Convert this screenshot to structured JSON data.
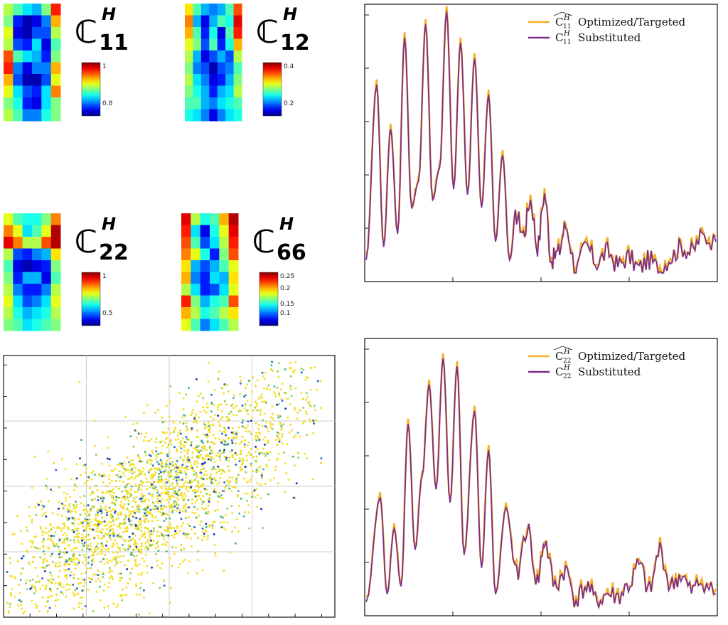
{
  "heatmaps": [
    {
      "id": "C11",
      "sym": "ℂ",
      "sup": "H",
      "sub": "11",
      "cbar_top": "1",
      "cbar_bottom": "0.8",
      "grid": [
        [
          0.55,
          0.45,
          0.35,
          0.3,
          0.5,
          0.85
        ],
        [
          0.5,
          0.15,
          0.05,
          0.1,
          0.25,
          0.7
        ],
        [
          0.6,
          0.1,
          0.05,
          0.2,
          0.2,
          0.55
        ],
        [
          0.55,
          0.2,
          0.15,
          0.35,
          0.1,
          0.45
        ],
        [
          0.8,
          0.45,
          0.35,
          0.3,
          0.15,
          0.5
        ],
        [
          0.85,
          0.25,
          0.1,
          0.25,
          0.25,
          0.7
        ],
        [
          0.7,
          0.2,
          0.05,
          0.05,
          0.2,
          0.6
        ],
        [
          0.6,
          0.35,
          0.2,
          0.15,
          0.35,
          0.75
        ],
        [
          0.5,
          0.4,
          0.15,
          0.1,
          0.35,
          0.5
        ],
        [
          0.55,
          0.45,
          0.25,
          0.25,
          0.4,
          0.5
        ]
      ]
    },
    {
      "id": "C12",
      "sym": "ℂ",
      "sup": "H",
      "sub": "12",
      "cbar_top": "0.4",
      "cbar_bottom": "0.2",
      "grid": [
        [
          0.65,
          0.45,
          0.3,
          0.25,
          0.3,
          0.45,
          0.8
        ],
        [
          0.75,
          0.3,
          0.1,
          0.3,
          0.45,
          0.4,
          0.9
        ],
        [
          0.7,
          0.45,
          0.15,
          0.4,
          0.1,
          0.45,
          0.85
        ],
        [
          0.6,
          0.5,
          0.2,
          0.45,
          0.15,
          0.4,
          0.7
        ],
        [
          0.55,
          0.3,
          0.1,
          0.2,
          0.3,
          0.2,
          0.55
        ],
        [
          0.5,
          0.25,
          0.2,
          0.05,
          0.2,
          0.25,
          0.45
        ],
        [
          0.55,
          0.35,
          0.25,
          0.1,
          0.15,
          0.3,
          0.5
        ],
        [
          0.5,
          0.4,
          0.3,
          0.15,
          0.3,
          0.35,
          0.55
        ],
        [
          0.45,
          0.45,
          0.3,
          0.25,
          0.35,
          0.4,
          0.45
        ],
        [
          0.4,
          0.35,
          0.25,
          0.1,
          0.25,
          0.35,
          0.4
        ]
      ]
    },
    {
      "id": "C22",
      "sym": "ℂ",
      "sup": "H",
      "sub": "22",
      "cbar_top": "1",
      "cbar_bottom": "0.5",
      "grid": [
        [
          0.6,
          0.45,
          0.4,
          0.4,
          0.5,
          0.75
        ],
        [
          0.75,
          0.6,
          0.35,
          0.45,
          0.6,
          0.95
        ],
        [
          0.9,
          0.75,
          0.55,
          0.55,
          0.8,
          0.95
        ],
        [
          0.55,
          0.2,
          0.15,
          0.25,
          0.3,
          0.65
        ],
        [
          0.45,
          0.1,
          0.05,
          0.1,
          0.15,
          0.5
        ],
        [
          0.5,
          0.15,
          0.3,
          0.3,
          0.1,
          0.45
        ],
        [
          0.55,
          0.25,
          0.15,
          0.15,
          0.25,
          0.55
        ],
        [
          0.6,
          0.35,
          0.2,
          0.25,
          0.35,
          0.6
        ],
        [
          0.55,
          0.4,
          0.3,
          0.35,
          0.4,
          0.55
        ],
        [
          0.5,
          0.45,
          0.35,
          0.4,
          0.45,
          0.5
        ]
      ]
    },
    {
      "id": "C66",
      "sym": "ℂ",
      "sup": "H",
      "sub": "66",
      "cbar_top": "0.25",
      "cbar_bottom": "0.1",
      "cbar_mid": [
        "0.2",
        "0.15"
      ],
      "grid": [
        [
          0.9,
          0.55,
          0.4,
          0.45,
          0.7,
          0.95
        ],
        [
          0.85,
          0.35,
          0.1,
          0.4,
          0.6,
          0.9
        ],
        [
          0.8,
          0.45,
          0.2,
          0.35,
          0.55,
          0.85
        ],
        [
          0.75,
          0.6,
          0.4,
          0.15,
          0.5,
          0.8
        ],
        [
          0.65,
          0.3,
          0.2,
          0.3,
          0.45,
          0.6
        ],
        [
          0.7,
          0.25,
          0.15,
          0.35,
          0.3,
          0.65
        ],
        [
          0.55,
          0.35,
          0.15,
          0.2,
          0.35,
          0.6
        ],
        [
          0.85,
          0.5,
          0.3,
          0.4,
          0.45,
          0.8
        ],
        [
          0.7,
          0.55,
          0.4,
          0.45,
          0.55,
          0.65
        ],
        [
          0.6,
          0.45,
          0.25,
          0.35,
          0.45,
          0.55
        ]
      ]
    }
  ],
  "chart_data": [
    {
      "type": "line",
      "legend_placement": "top-right",
      "series": [
        {
          "name": "Optimized/Targeted",
          "legend_sym": "C",
          "legend_sup": "H",
          "legend_sub": "11",
          "legend_hat": true,
          "color": "#f5b026"
        },
        {
          "name": "Substituted",
          "legend_sym": "C",
          "legend_sup": "H",
          "legend_sub": "11",
          "legend_hat": false,
          "color": "#7b2d8e"
        }
      ],
      "peaks": [
        [
          0.0,
          0.05
        ],
        [
          0.03,
          0.72
        ],
        [
          0.05,
          0.1
        ],
        [
          0.07,
          0.55
        ],
        [
          0.09,
          0.15
        ],
        [
          0.11,
          0.9
        ],
        [
          0.13,
          0.25
        ],
        [
          0.15,
          0.35
        ],
        [
          0.17,
          0.95
        ],
        [
          0.19,
          0.28
        ],
        [
          0.21,
          0.4
        ],
        [
          0.23,
          1.0
        ],
        [
          0.25,
          0.32
        ],
        [
          0.27,
          0.88
        ],
        [
          0.29,
          0.3
        ],
        [
          0.31,
          0.82
        ],
        [
          0.33,
          0.25
        ],
        [
          0.35,
          0.68
        ],
        [
          0.37,
          0.12
        ],
        [
          0.39,
          0.45
        ],
        [
          0.41,
          0.05
        ],
        [
          0.43,
          0.22
        ],
        [
          0.45,
          0.15
        ],
        [
          0.47,
          0.28
        ],
        [
          0.49,
          0.1
        ],
        [
          0.51,
          0.3
        ],
        [
          0.53,
          0.05
        ],
        [
          0.55,
          0.08
        ],
        [
          0.57,
          0.18
        ],
        [
          0.6,
          0.02
        ],
        [
          0.63,
          0.1
        ],
        [
          0.66,
          0.04
        ],
        [
          0.69,
          0.08
        ],
        [
          0.72,
          0.03
        ],
        [
          0.75,
          0.06
        ],
        [
          0.78,
          0.02
        ],
        [
          0.81,
          0.05
        ],
        [
          0.84,
          0.01
        ],
        [
          0.87,
          0.06
        ],
        [
          0.9,
          0.1
        ],
        [
          0.93,
          0.08
        ],
        [
          0.96,
          0.14
        ],
        [
          1.0,
          0.12
        ]
      ]
    },
    {
      "type": "line",
      "legend_placement": "top-right",
      "series": [
        {
          "name": "Optimized/Targeted",
          "legend_sym": "C",
          "legend_sup": "H",
          "legend_sub": "22",
          "legend_hat": true,
          "color": "#f5b026"
        },
        {
          "name": "Substituted",
          "legend_sym": "C",
          "legend_sup": "H",
          "legend_sub": "22",
          "legend_hat": false,
          "color": "#7b2d8e"
        }
      ],
      "peaks": [
        [
          0.0,
          0.02
        ],
        [
          0.04,
          0.42
        ],
        [
          0.06,
          0.05
        ],
        [
          0.08,
          0.3
        ],
        [
          0.1,
          0.08
        ],
        [
          0.12,
          0.7
        ],
        [
          0.14,
          0.22
        ],
        [
          0.16,
          0.5
        ],
        [
          0.18,
          0.85
        ],
        [
          0.2,
          0.45
        ],
        [
          0.22,
          0.95
        ],
        [
          0.24,
          0.4
        ],
        [
          0.26,
          0.92
        ],
        [
          0.28,
          0.2
        ],
        [
          0.31,
          0.75
        ],
        [
          0.33,
          0.15
        ],
        [
          0.35,
          0.6
        ],
        [
          0.37,
          0.05
        ],
        [
          0.4,
          0.38
        ],
        [
          0.43,
          0.12
        ],
        [
          0.46,
          0.3
        ],
        [
          0.49,
          0.1
        ],
        [
          0.51,
          0.25
        ],
        [
          0.54,
          0.08
        ],
        [
          0.57,
          0.14
        ],
        [
          0.6,
          0.03
        ],
        [
          0.63,
          0.08
        ],
        [
          0.66,
          0.02
        ],
        [
          0.69,
          0.05
        ],
        [
          0.72,
          0.04
        ],
        [
          0.75,
          0.08
        ],
        [
          0.78,
          0.16
        ],
        [
          0.81,
          0.06
        ],
        [
          0.84,
          0.22
        ],
        [
          0.87,
          0.08
        ],
        [
          0.9,
          0.12
        ],
        [
          0.93,
          0.06
        ],
        [
          0.96,
          0.1
        ],
        [
          1.0,
          0.05
        ]
      ]
    },
    {
      "type": "scatter",
      "grid": true,
      "colors": [
        "#f5e02a",
        "#e8d81f",
        "#4fb88a",
        "#2f6fc0",
        "#1e3ea3",
        "#9ccf5a"
      ],
      "n_points": 2600
    }
  ]
}
